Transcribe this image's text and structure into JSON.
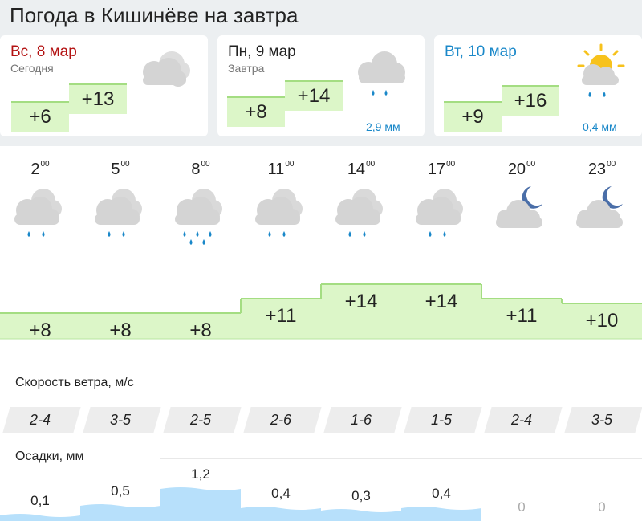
{
  "page": {
    "title": "Погода в Кишинёве на завтра"
  },
  "days": [
    {
      "name": "Вс, 8 мар",
      "sub": "Сегодня",
      "temp_min": "+6",
      "temp_max": "+13",
      "precip": "",
      "icon": "cloudy-icon",
      "color": "#b31212"
    },
    {
      "name": "Пн, 9 мар",
      "sub": "Завтра",
      "temp_min": "+8",
      "temp_max": "+14",
      "precip": "2,9 мм",
      "icon": "cloud-rain-icon",
      "color": "#222222"
    },
    {
      "name": "Вт, 10 мар",
      "sub": "",
      "temp_min": "+9",
      "temp_max": "+16",
      "precip": "0,4 мм",
      "icon": "sun-cloud-rain-icon",
      "color": "#1a88c9"
    }
  ],
  "hours": [
    {
      "hour": "2",
      "min": "00",
      "temp": "+8",
      "temp_value": 8,
      "icon": "cloud-rain-icon",
      "drops": 2,
      "wind": "2-4",
      "precip": "0,1",
      "precip_value": 0.1
    },
    {
      "hour": "5",
      "min": "00",
      "temp": "+8",
      "temp_value": 8,
      "icon": "cloud-rain-icon",
      "drops": 2,
      "wind": "3-5",
      "precip": "0,5",
      "precip_value": 0.5
    },
    {
      "hour": "8",
      "min": "00",
      "temp": "+8",
      "temp_value": 8,
      "icon": "cloud-heavy-rain-icon",
      "drops": 4,
      "wind": "2-5",
      "precip": "1,2",
      "precip_value": 1.2
    },
    {
      "hour": "11",
      "min": "00",
      "temp": "+11",
      "temp_value": 11,
      "icon": "cloud-rain-icon",
      "drops": 2,
      "wind": "2-6",
      "precip": "0,4",
      "precip_value": 0.4
    },
    {
      "hour": "14",
      "min": "00",
      "temp": "+14",
      "temp_value": 14,
      "icon": "cloud-rain-icon",
      "drops": 2,
      "wind": "1-6",
      "precip": "0,3",
      "precip_value": 0.3
    },
    {
      "hour": "17",
      "min": "00",
      "temp": "+14",
      "temp_value": 14,
      "icon": "cloud-rain-icon",
      "drops": 2,
      "wind": "1-5",
      "precip": "0,4",
      "precip_value": 0.4
    },
    {
      "hour": "20",
      "min": "00",
      "temp": "+11",
      "temp_value": 11,
      "icon": "moon-cloud-icon",
      "drops": 0,
      "wind": "2-4",
      "precip": "0",
      "precip_value": 0
    },
    {
      "hour": "23",
      "min": "00",
      "temp": "+10",
      "temp_value": 10,
      "icon": "moon-cloud-icon",
      "drops": 0,
      "wind": "3-5",
      "precip": "0",
      "precip_value": 0
    }
  ],
  "wind": {
    "label": "Скорость ветра, м/с"
  },
  "precipitation": {
    "label": "Осадки, мм"
  },
  "colors": {
    "temp_fill": "#dcf6c8",
    "temp_border": "#a4dd82",
    "rain": "#1a88c9",
    "precip_fill": "#b7e0fb",
    "cloud": "#d4d4d4",
    "moon": "#4a6ea8",
    "sun": "#f7c21c"
  }
}
